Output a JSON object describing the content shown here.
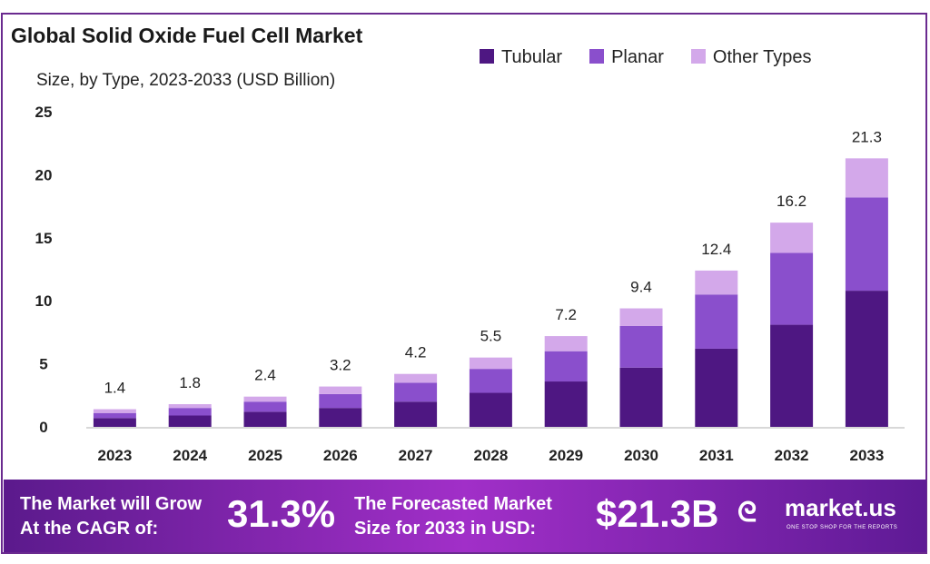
{
  "title": "Global Solid Oxide Fuel Cell Market",
  "subtitle": "Size, by Type, 2023-2033 (USD Billion)",
  "colors": {
    "Tubular": "#4e1782",
    "Planar": "#8a4fcc",
    "Other Types": "#d3a8ea"
  },
  "chart_data": {
    "type": "bar",
    "stacked": true,
    "title": "Global Solid Oxide Fuel Cell Market",
    "subtitle": "Size, by Type, 2023-2033 (USD Billion)",
    "categories": [
      "2023",
      "2024",
      "2025",
      "2026",
      "2027",
      "2028",
      "2029",
      "2030",
      "2031",
      "2032",
      "2033"
    ],
    "series": [
      {
        "name": "Tubular",
        "values": [
          0.7,
          0.9,
          1.2,
          1.5,
          2.0,
          2.7,
          3.6,
          4.7,
          6.2,
          8.1,
          10.8
        ]
      },
      {
        "name": "Planar",
        "values": [
          0.4,
          0.6,
          0.8,
          1.1,
          1.5,
          1.9,
          2.4,
          3.3,
          4.3,
          5.7,
          7.4
        ]
      },
      {
        "name": "Other Types",
        "values": [
          0.3,
          0.3,
          0.4,
          0.6,
          0.7,
          0.9,
          1.2,
          1.4,
          1.9,
          2.4,
          3.1
        ]
      }
    ],
    "totals": [
      "1.4",
      "1.8",
      "2.4",
      "3.2",
      "4.2",
      "5.5",
      "7.2",
      "9.4",
      "12.4",
      "16.2",
      "21.3"
    ],
    "yticks": [
      "0",
      "5",
      "10",
      "15",
      "20",
      "25"
    ],
    "ylim": [
      0,
      25
    ],
    "grid": false,
    "legend": "top-right"
  },
  "footer": {
    "cagr_label_1": "The Market will Grow",
    "cagr_label_2": "At the CAGR of:",
    "cagr_value": "31.3%",
    "forecast_label_1": "The Forecasted Market",
    "forecast_label_2": "Size for 2033 in USD:",
    "forecast_value": "$21.3B",
    "brand": "market.us",
    "tagline": "ONE STOP SHOP FOR THE REPORTS"
  }
}
